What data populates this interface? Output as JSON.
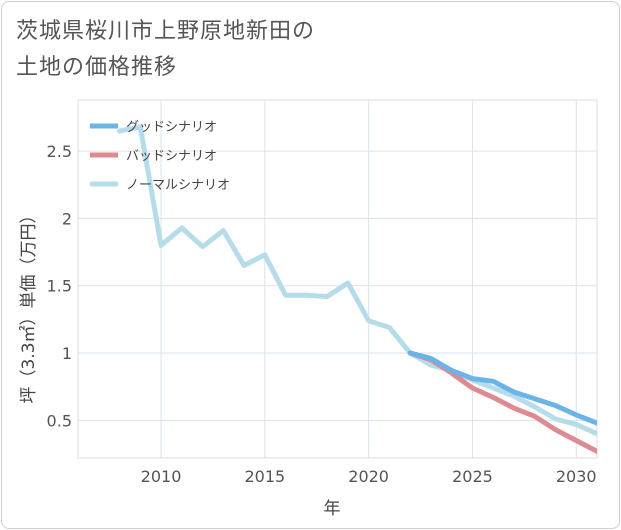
{
  "chart_data": {
    "type": "line",
    "title_lines": [
      "茨城県桜川市上野原地新田の",
      "土地の価格推移"
    ],
    "xlabel": "年",
    "ylabel": "坪（3.3㎡）単価（万円）",
    "xlim": [
      2006,
      2031
    ],
    "ylim": [
      0.22,
      2.88
    ],
    "xticks": [
      2010,
      2015,
      2020,
      2025,
      2030
    ],
    "xtick_labels": [
      "2010",
      "2015",
      "2020",
      "2025",
      "2030"
    ],
    "yticks": [
      0.5,
      1,
      1.5,
      2,
      2.5
    ],
    "ytick_labels": [
      "0.5",
      "1",
      "1.5",
      "2",
      "2.5"
    ],
    "grid": true,
    "legend_position": "top-left",
    "series": [
      {
        "name": "グッドシナリオ",
        "color": "#6cb4e8",
        "x": [
          2022,
          2023,
          2024,
          2025,
          2026,
          2027,
          2028,
          2029,
          2030,
          2031
        ],
        "values": [
          1.0,
          0.96,
          0.87,
          0.81,
          0.79,
          0.71,
          0.66,
          0.61,
          0.54,
          0.48
        ]
      },
      {
        "name": "バッドシナリオ",
        "color": "#dd8a92",
        "x": [
          2022,
          2023,
          2024,
          2025,
          2026,
          2027,
          2028,
          2029,
          2030,
          2031
        ],
        "values": [
          1.0,
          0.95,
          0.85,
          0.74,
          0.67,
          0.59,
          0.53,
          0.43,
          0.35,
          0.27
        ]
      },
      {
        "name": "ノーマルシナリオ",
        "color": "#b6dcec",
        "x": [
          2008,
          2009,
          2010,
          2011,
          2012,
          2013,
          2014,
          2015,
          2016,
          2017,
          2018,
          2019,
          2020,
          2021,
          2022,
          2023,
          2024,
          2025,
          2026,
          2027,
          2028,
          2029,
          2030,
          2031
        ],
        "values": [
          2.65,
          2.68,
          1.8,
          1.93,
          1.79,
          1.91,
          1.65,
          1.73,
          1.43,
          1.43,
          1.42,
          1.52,
          1.24,
          1.19,
          1.0,
          0.91,
          0.87,
          0.8,
          0.74,
          0.68,
          0.6,
          0.51,
          0.47,
          0.4
        ]
      }
    ]
  }
}
